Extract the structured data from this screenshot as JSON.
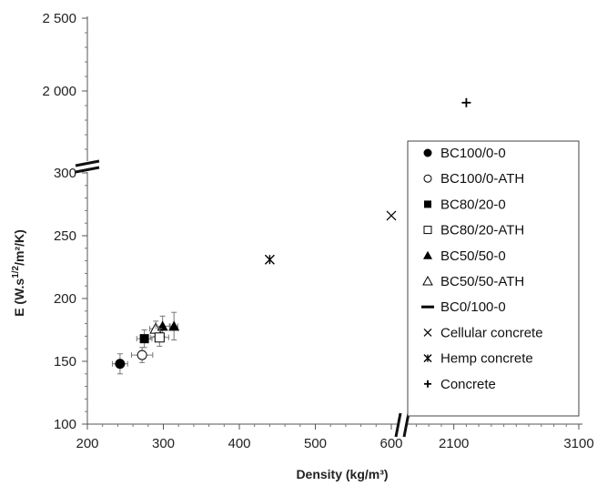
{
  "chart_data": {
    "type": "scatter",
    "xlabel": "Density (kg/m³)",
    "ylabel_parts": [
      "E (W.s",
      "1/2",
      "/m²/K)"
    ],
    "x_axis": {
      "segments": [
        {
          "range": [
            200,
            600
          ],
          "ticks": [
            "200",
            "300",
            "400",
            "500",
            "600"
          ]
        },
        {
          "range": [
            1600,
            3100
          ],
          "ticks": [
            "2100",
            "3100"
          ]
        }
      ]
    },
    "y_axis": {
      "segments": [
        {
          "range": [
            100,
            300
          ],
          "ticks": [
            "100",
            "150",
            "200",
            "250",
            "300"
          ]
        },
        {
          "range": [
            1500,
            2500
          ],
          "ticks": [
            "2 000",
            "2 500"
          ]
        }
      ]
    },
    "axis_breaks": [
      "y",
      "x"
    ],
    "grid": false,
    "legend_position": "right",
    "series": [
      {
        "name": "BC100/0-0",
        "marker": "filled-circle",
        "points": [
          {
            "x": 243,
            "y": 148,
            "xerr": 10,
            "yerr": 8
          }
        ]
      },
      {
        "name": "BC100/0-ATH",
        "marker": "open-circle",
        "points": [
          {
            "x": 272,
            "y": 155,
            "xerr": 14,
            "yerr": 6
          }
        ]
      },
      {
        "name": "BC80/20-0",
        "marker": "filled-square",
        "points": [
          {
            "x": 275,
            "y": 168,
            "xerr": 10,
            "yerr": 7
          }
        ]
      },
      {
        "name": "BC80/20-ATH",
        "marker": "open-square",
        "points": [
          {
            "x": 295,
            "y": 169,
            "xerr": 12,
            "yerr": 7
          }
        ]
      },
      {
        "name": "BC50/50-0",
        "marker": "filled-triangle",
        "points": [
          {
            "x": 299,
            "y": 178,
            "xerr": 9,
            "yerr": 8
          },
          {
            "x": 314,
            "y": 178,
            "xerr": 5,
            "yerr": 11
          }
        ]
      },
      {
        "name": "BC50/50-ATH",
        "marker": "open-triangle",
        "points": [
          {
            "x": 290,
            "y": 176,
            "xerr": 8,
            "yerr": 6
          }
        ]
      },
      {
        "name": "BC0/100-0",
        "marker": "dash",
        "points": []
      },
      {
        "name": "Cellular concrete",
        "marker": "x",
        "points": [
          {
            "x": 600,
            "y": 266
          }
        ]
      },
      {
        "name": "Hemp concrete",
        "marker": "star",
        "points": [
          {
            "x": 440,
            "y": 231
          }
        ]
      },
      {
        "name": "Concrete",
        "marker": "plus",
        "points": [
          {
            "x": 2200,
            "y": 1920
          }
        ]
      }
    ]
  }
}
